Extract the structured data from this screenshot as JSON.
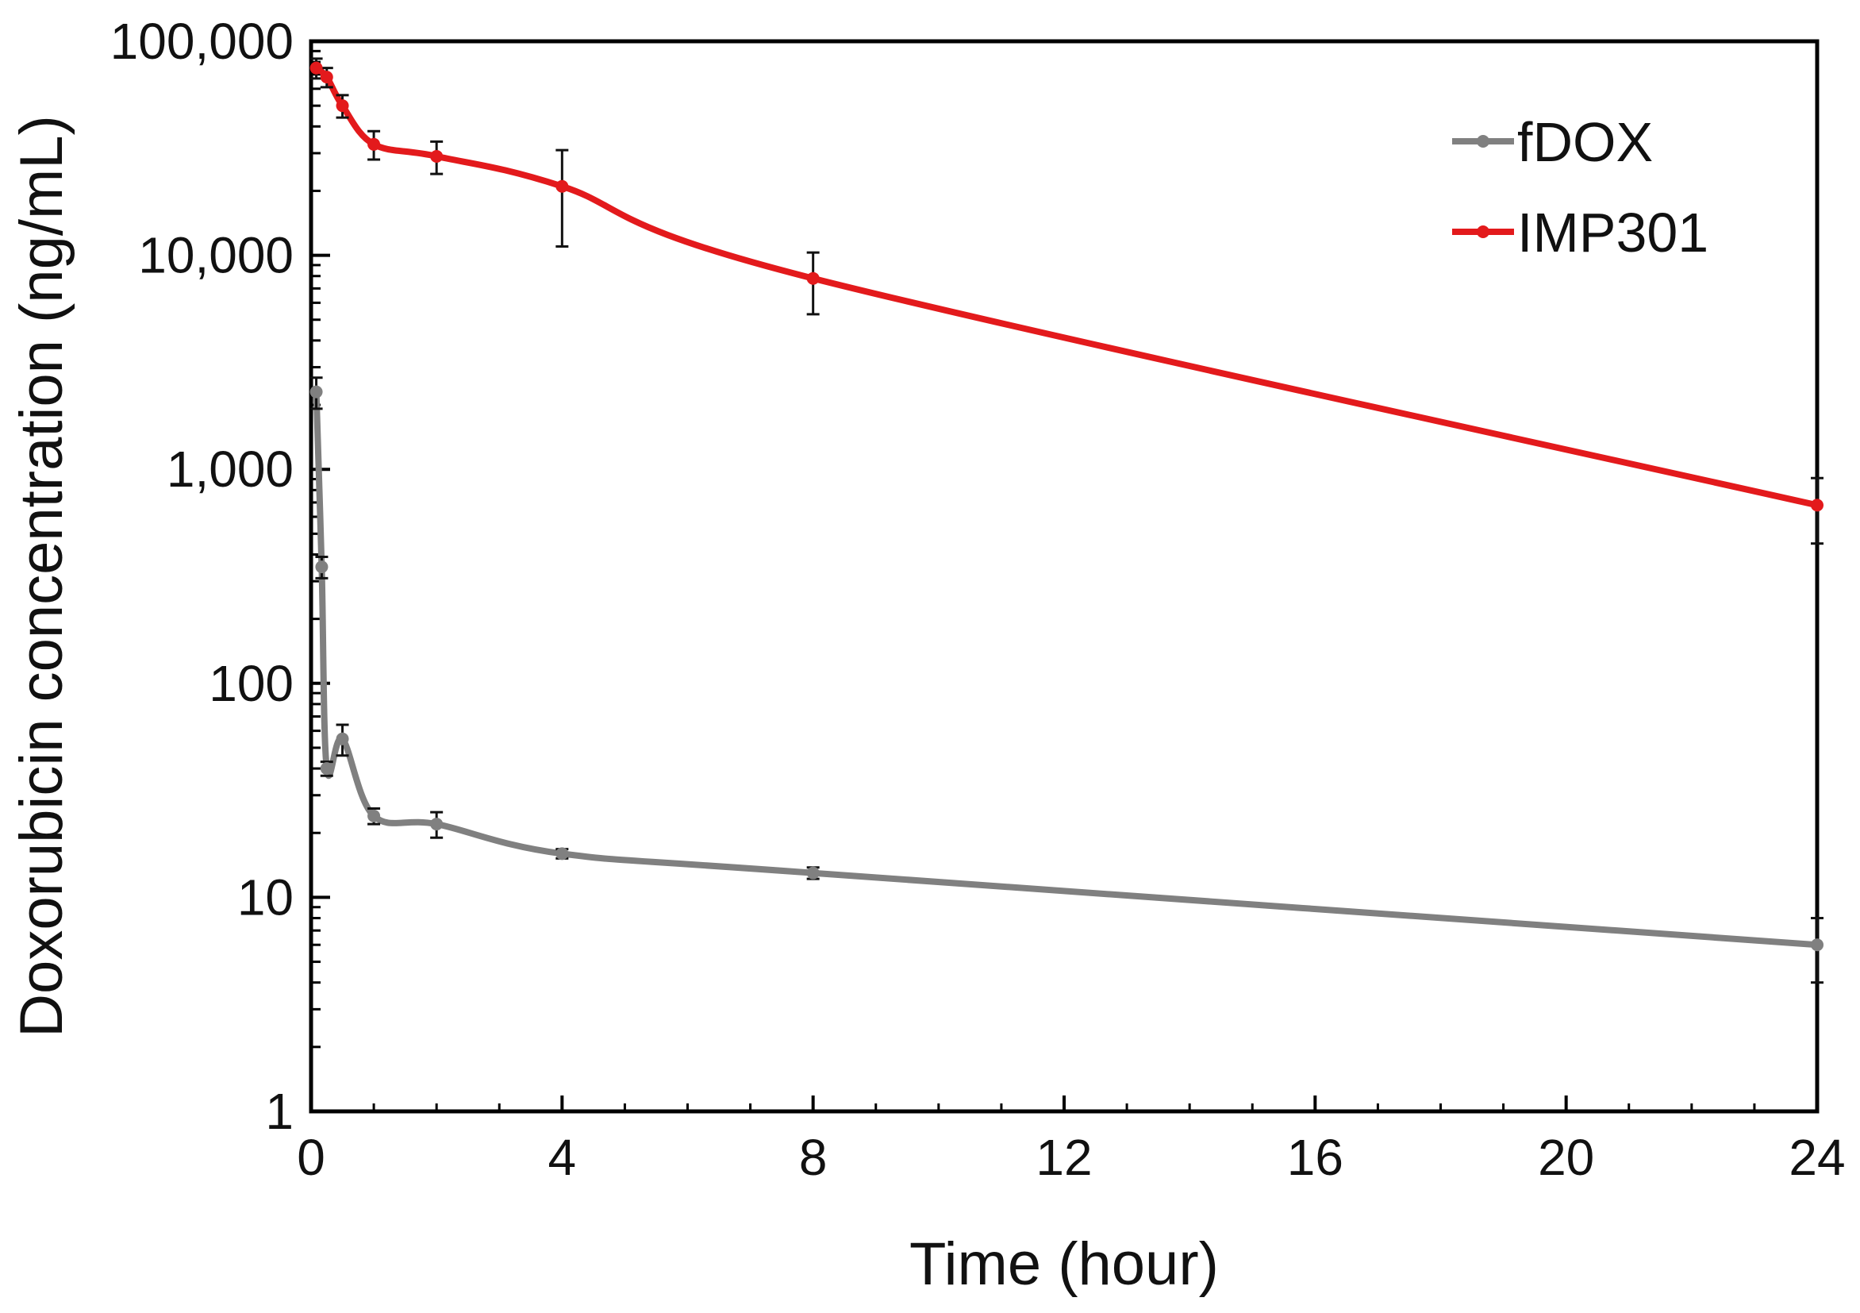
{
  "chart_data": {
    "type": "line",
    "title": "",
    "xlabel": "Time (hour)",
    "ylabel": "Doxorubicin concentration (ng/mL)",
    "yscale": "log",
    "xlim": [
      0,
      24
    ],
    "ylim": [
      1,
      100000
    ],
    "xticks": [
      0,
      4,
      8,
      12,
      16,
      20,
      24
    ],
    "xtick_labels": [
      "0",
      "4",
      "8",
      "12",
      "16",
      "20",
      "24"
    ],
    "yticks": [
      1,
      10,
      100,
      1000,
      10000,
      100000
    ],
    "ytick_labels": [
      "1",
      "10",
      "100",
      "1,000",
      "10,000",
      "100,000"
    ],
    "grid": false,
    "legend_position": "top-right",
    "series": [
      {
        "name": "fDOX",
        "color": "#808080",
        "x": [
          0.083,
          0.17,
          0.25,
          0.5,
          1,
          2,
          4,
          8,
          24
        ],
        "y": [
          2300,
          350,
          40,
          55,
          24,
          22,
          16,
          13,
          6
        ],
        "error": [
          380,
          40,
          3,
          9,
          2,
          3,
          0.8,
          0.8,
          2
        ]
      },
      {
        "name": "IMP301",
        "color": "#e31a1c",
        "x": [
          0.083,
          0.25,
          0.5,
          1,
          2,
          4,
          8,
          24
        ],
        "y": [
          75000,
          68000,
          50000,
          33000,
          29000,
          21000,
          7800,
          680
        ],
        "error": [
          8000,
          7000,
          6000,
          5000,
          5000,
          10000,
          2500,
          230
        ]
      }
    ]
  }
}
